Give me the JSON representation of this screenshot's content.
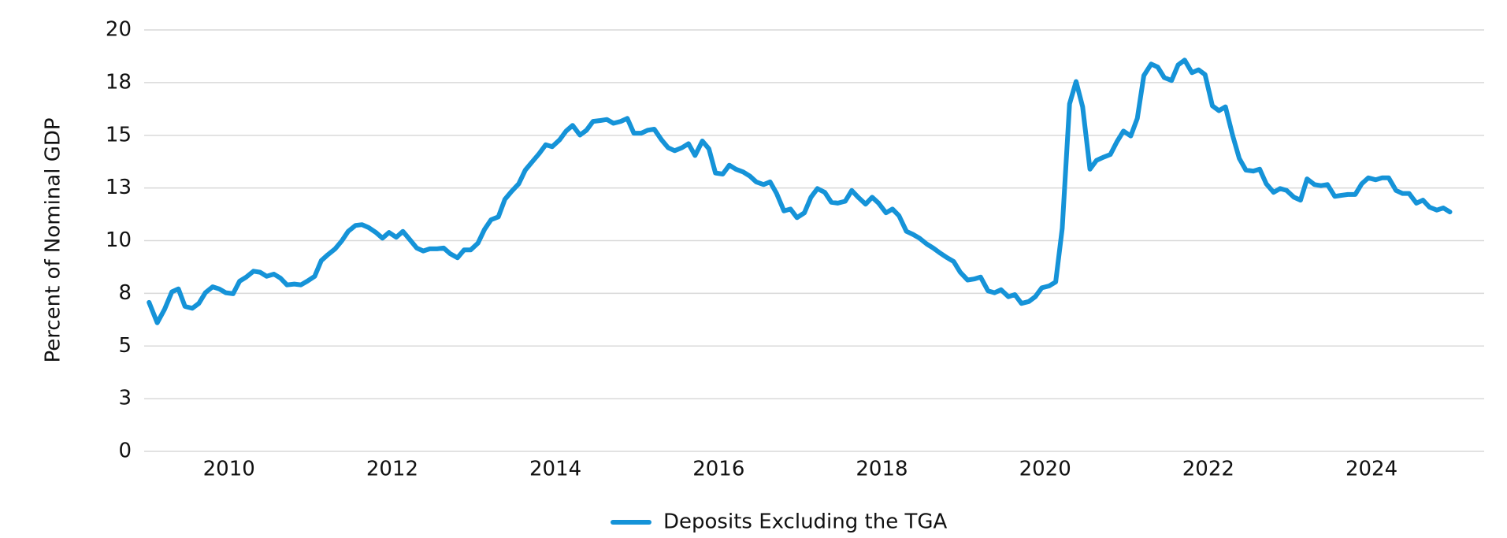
{
  "chart_data": {
    "type": "line",
    "y_label": "Percent of Nominal GDP",
    "xlim": [
      2008.96,
      2025.38
    ],
    "xticks": [
      2010,
      2012,
      2014,
      2016,
      2018,
      2020,
      2022,
      2024
    ],
    "ylim": [
      0,
      20
    ],
    "yticks": [
      0,
      {
        "value": 2.5,
        "label": "3"
      },
      5,
      {
        "value": 7.5,
        "label": "8"
      },
      10,
      {
        "value": 12.5,
        "label": "13"
      },
      15,
      {
        "value": 17.5,
        "label": "18"
      },
      20
    ],
    "grid": true,
    "legend": "bottom",
    "x": [
      2009.02,
      2009.12,
      2009.21,
      2009.3,
      2009.38,
      2009.46,
      2009.55,
      2009.63,
      2009.71,
      2009.8,
      2009.88,
      2009.96,
      2010.05,
      2010.13,
      2010.21,
      2010.3,
      2010.38,
      2010.46,
      2010.55,
      2010.63,
      2010.71,
      2010.8,
      2010.88,
      2010.96,
      2011.05,
      2011.13,
      2011.21,
      2011.3,
      2011.38,
      2011.46,
      2011.55,
      2011.63,
      2011.71,
      2011.8,
      2011.88,
      2011.96,
      2012.05,
      2012.13,
      2012.21,
      2012.3,
      2012.38,
      2012.46,
      2012.55,
      2012.63,
      2012.71,
      2012.8,
      2012.88,
      2012.96,
      2013.05,
      2013.13,
      2013.21,
      2013.3,
      2013.38,
      2013.46,
      2013.55,
      2013.63,
      2013.71,
      2013.8,
      2013.88,
      2013.96,
      2014.05,
      2014.13,
      2014.21,
      2014.3,
      2014.38,
      2014.46,
      2014.55,
      2014.63,
      2014.71,
      2014.8,
      2014.88,
      2014.96,
      2015.05,
      2015.13,
      2015.21,
      2015.3,
      2015.38,
      2015.46,
      2015.55,
      2015.63,
      2015.71,
      2015.8,
      2015.88,
      2015.96,
      2016.05,
      2016.13,
      2016.21,
      2016.3,
      2016.38,
      2016.46,
      2016.55,
      2016.63,
      2016.71,
      2016.8,
      2016.88,
      2016.96,
      2017.05,
      2017.13,
      2017.21,
      2017.3,
      2017.38,
      2017.46,
      2017.55,
      2017.63,
      2017.71,
      2017.8,
      2017.88,
      2017.96,
      2018.05,
      2018.13,
      2018.21,
      2018.3,
      2018.38,
      2018.46,
      2018.55,
      2018.63,
      2018.71,
      2018.8,
      2018.88,
      2018.96,
      2019.05,
      2019.13,
      2019.21,
      2019.3,
      2019.38,
      2019.46,
      2019.55,
      2019.63,
      2019.71,
      2019.8,
      2019.88,
      2019.96,
      2020.05,
      2020.13,
      2020.21,
      2020.3,
      2020.38,
      2020.46,
      2020.55,
      2020.63,
      2020.71,
      2020.8,
      2020.88,
      2020.96,
      2021.05,
      2021.13,
      2021.21,
      2021.3,
      2021.38,
      2021.46,
      2021.55,
      2021.63,
      2021.71,
      2021.8,
      2021.88,
      2021.96,
      2022.05,
      2022.13,
      2022.21,
      2022.3,
      2022.38,
      2022.46,
      2022.55,
      2022.63,
      2022.71,
      2022.8,
      2022.88,
      2022.96,
      2023.05,
      2023.13,
      2023.21,
      2023.3,
      2023.38,
      2023.46,
      2023.55,
      2023.63,
      2023.71,
      2023.8,
      2023.88,
      2023.96,
      2024.05,
      2024.13,
      2024.21,
      2024.3,
      2024.38,
      2024.46,
      2024.55,
      2024.63,
      2024.71,
      2024.8,
      2024.88,
      2024.96
    ],
    "series": [
      {
        "name": "Deposits Excluding the TGA",
        "color": "#1593d8",
        "values": [
          7.07,
          6.1,
          6.74,
          7.57,
          7.71,
          6.88,
          6.79,
          7.02,
          7.53,
          7.81,
          7.71,
          7.53,
          7.48,
          8.08,
          8.27,
          8.55,
          8.5,
          8.31,
          8.41,
          8.22,
          7.9,
          7.94,
          7.9,
          8.08,
          8.31,
          9.05,
          9.33,
          9.61,
          9.98,
          10.44,
          10.72,
          10.76,
          10.62,
          10.39,
          10.12,
          10.39,
          10.16,
          10.44,
          10.07,
          9.65,
          9.51,
          9.61,
          9.61,
          9.65,
          9.38,
          9.19,
          9.56,
          9.56,
          9.88,
          10.53,
          10.99,
          11.13,
          11.96,
          12.33,
          12.7,
          13.35,
          13.72,
          14.13,
          14.55,
          14.46,
          14.78,
          15.2,
          15.47,
          15.01,
          15.24,
          15.66,
          15.7,
          15.75,
          15.57,
          15.66,
          15.8,
          15.1,
          15.1,
          15.24,
          15.29,
          14.78,
          14.41,
          14.27,
          14.41,
          14.6,
          14.04,
          14.73,
          14.36,
          13.21,
          13.16,
          13.58,
          13.39,
          13.26,
          13.07,
          12.79,
          12.66,
          12.79,
          12.24,
          11.41,
          11.5,
          11.09,
          11.32,
          12.06,
          12.47,
          12.29,
          11.82,
          11.78,
          11.87,
          12.38,
          12.06,
          11.73,
          12.06,
          11.78,
          11.32,
          11.5,
          11.18,
          10.44,
          10.3,
          10.12,
          9.84,
          9.65,
          9.42,
          9.19,
          9.01,
          8.5,
          8.13,
          8.18,
          8.27,
          7.62,
          7.53,
          7.67,
          7.34,
          7.44,
          7.02,
          7.11,
          7.34,
          7.76,
          7.85,
          8.04,
          10.58,
          16.49,
          17.55,
          16.35,
          13.39,
          13.81,
          13.95,
          14.09,
          14.69,
          15.2,
          14.97,
          15.8,
          17.83,
          18.38,
          18.24,
          17.74,
          17.6,
          18.34,
          18.57,
          17.97,
          18.11,
          17.88,
          16.4,
          16.17,
          16.35,
          14.97,
          13.9,
          13.35,
          13.3,
          13.39,
          12.7,
          12.29,
          12.47,
          12.38,
          12.06,
          11.92,
          12.93,
          12.66,
          12.61,
          12.66,
          12.1,
          12.15,
          12.19,
          12.19,
          12.7,
          12.98,
          12.89,
          12.98,
          12.98,
          12.38,
          12.24,
          12.24,
          11.78,
          11.92,
          11.59,
          11.45,
          11.55,
          11.36
        ]
      }
    ]
  }
}
